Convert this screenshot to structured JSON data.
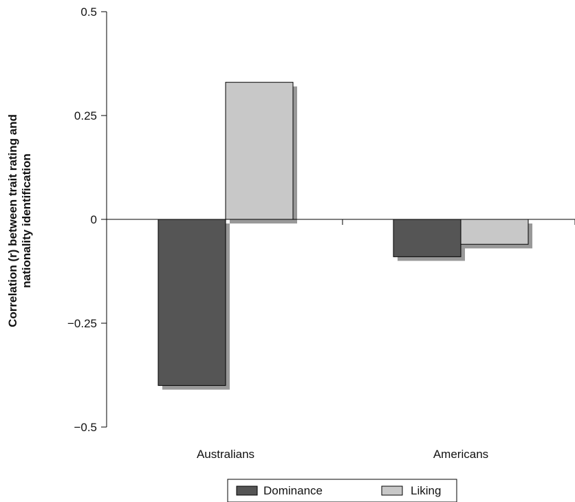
{
  "chart_data": {
    "type": "bar",
    "categories": [
      "Australians",
      "Americans"
    ],
    "series": [
      {
        "name": "Dominance",
        "values": [
          -0.4,
          -0.09
        ],
        "color": "#555555"
      },
      {
        "name": "Liking",
        "values": [
          0.33,
          -0.06
        ],
        "color": "#c8c8c8"
      }
    ],
    "title": "",
    "xlabel": "",
    "ylabel": "Correlation (r) between trait rating and nationality identification",
    "ylabel_lines": [
      "Correlation (r) between trait rating and",
      "nationality identification"
    ],
    "ylim": [
      -0.5,
      0.5
    ],
    "yticks": [
      0.5,
      0.25,
      0,
      -0.25,
      -0.5
    ],
    "ytick_labels": [
      "0.5",
      "0.25",
      "0",
      "−0.25",
      "−0.5"
    ],
    "grid": false,
    "legend_position": "bottom",
    "shadow_color": "#999999"
  }
}
